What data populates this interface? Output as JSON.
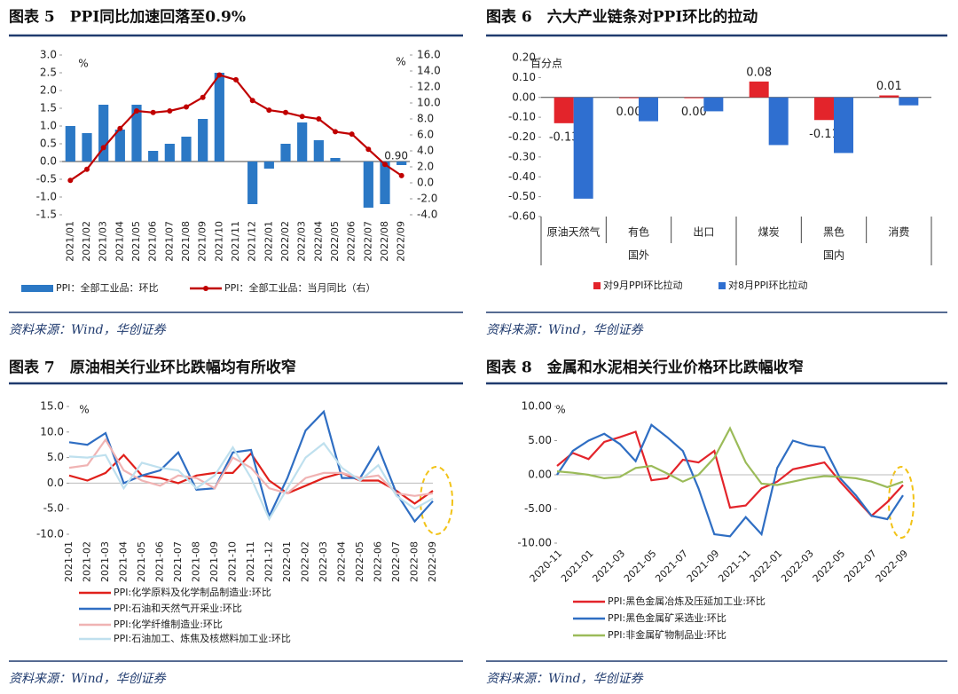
{
  "chart_data": [
    {
      "type": "combo",
      "title": "图表 5　PPI同比加速回落至0.9%",
      "source": "资料来源：Wind，华创证券",
      "ylabel": "%",
      "y2label": "%",
      "categories": [
        "2021/01",
        "2021/02",
        "2021/03",
        "2021/04",
        "2021/05",
        "2021/06",
        "2021/07",
        "2021/08",
        "2021/09",
        "2021/10",
        "2021/11",
        "2021/12",
        "2022/01",
        "2022/02",
        "2022/03",
        "2022/04",
        "2022/05",
        "2022/06",
        "2022/07",
        "2022/08",
        "2022/09"
      ],
      "series": [
        {
          "name": "PPI：全部工业品：环比",
          "color": "#2b78c5",
          "values": [
            1.0,
            0.8,
            1.6,
            0.9,
            1.6,
            0.3,
            0.5,
            0.7,
            1.2,
            2.5,
            0.0,
            -1.2,
            -0.2,
            0.5,
            1.1,
            0.6,
            0.1,
            0.0,
            -1.3,
            -1.2,
            -0.1
          ]
        },
        {
          "name": "PPI：全部工业品：当月同比（右）",
          "color": "#c00000",
          "axis": "y2",
          "values": [
            0.3,
            1.7,
            4.4,
            6.8,
            9.0,
            8.8,
            9.0,
            9.5,
            10.7,
            13.5,
            12.9,
            10.3,
            9.1,
            8.8,
            8.3,
            8.0,
            6.4,
            6.1,
            4.2,
            2.3,
            0.9
          ],
          "value_labels": [
            null,
            null,
            null,
            null,
            null,
            null,
            null,
            null,
            null,
            null,
            null,
            null,
            null,
            null,
            null,
            null,
            null,
            null,
            null,
            null,
            "0.90"
          ]
        }
      ],
      "ylim": [
        -1.5,
        3.0
      ],
      "yticks": [
        {
          "value": 3.0,
          "label": "3.0"
        },
        {
          "value": 2.5,
          "label": "2.5"
        },
        {
          "value": 2.0,
          "label": "2.0"
        },
        {
          "value": 1.5,
          "label": "1.5"
        },
        {
          "value": 1.0,
          "label": "1.0"
        },
        0.5,
        {
          "value": 0,
          "label": "0.0"
        },
        -0.5,
        {
          "value": -1.0,
          "label": "-1.0"
        },
        -1.5
      ],
      "y2lim": [
        -4.0,
        16.0
      ],
      "y2ticks": [
        {
          "value": 16,
          "label": "16.0"
        },
        {
          "value": 14,
          "label": "14.0"
        },
        {
          "value": 12,
          "label": "12.0"
        },
        {
          "value": 10,
          "label": "10.0"
        },
        {
          "value": 8,
          "label": "8.0"
        },
        {
          "value": 6,
          "label": "6.0"
        },
        {
          "value": 4,
          "label": "4.0"
        },
        {
          "value": 2,
          "label": "2.0"
        },
        {
          "value": 0,
          "label": "0.0"
        },
        {
          "value": -2,
          "label": "-2.0"
        },
        {
          "value": -4,
          "label": "-4.0"
        }
      ],
      "legend": "bottom"
    },
    {
      "type": "bar",
      "title": "图表 6　六大产业链条对PPI环比的拉动",
      "source": "资料来源：Wind，华创证券",
      "ylabel": "百分点",
      "categories": [
        "原油天然气",
        "有色",
        "出口",
        "煤炭",
        "黑色",
        "消费"
      ],
      "groups": [
        "国外",
        "国内"
      ],
      "series": [
        {
          "name": "对9月PPI环比拉动",
          "color": "#e3242b",
          "values": [
            -0.13,
            -0.004,
            -0.004,
            0.08,
            -0.114,
            0.01
          ],
          "value_labels": [
            "-0.13",
            "0.00",
            "0.00",
            "0.08",
            "-0.11",
            "0.01"
          ]
        },
        {
          "name": "对8月PPI环比拉动",
          "color": "#2f6fd0",
          "values": [
            -0.51,
            -0.12,
            -0.07,
            -0.24,
            -0.28,
            -0.04
          ]
        }
      ],
      "ylim": [
        -0.6,
        0.2
      ],
      "yticks": [
        {
          "value": 0.2,
          "label": "0.20"
        },
        {
          "value": 0.1,
          "label": "0.10"
        },
        {
          "value": 0,
          "label": "0.00"
        },
        {
          "value": -0.1,
          "label": "-0.10"
        },
        {
          "value": -0.2,
          "label": "-0.20"
        },
        {
          "value": -0.3,
          "label": "-0.30"
        },
        {
          "value": -0.4,
          "label": "-0.40"
        },
        {
          "value": -0.5,
          "label": "-0.50"
        },
        {
          "value": -0.6,
          "label": "-0.60"
        }
      ],
      "legend": "bottom"
    },
    {
      "type": "line",
      "title": "图表 7　原油相关行业环比跌幅均有所收窄",
      "source": "资料来源：Wind，华创证券",
      "ylabel": "%",
      "categories": [
        "2021-01",
        "2021-02",
        "2021-03",
        "2021-04",
        "2021-05",
        "2021-06",
        "2021-07",
        "2021-08",
        "2021-09",
        "2021-10",
        "2021-11",
        "2021-12",
        "2022-01",
        "2022-02",
        "2022-03",
        "2022-04",
        "2022-05",
        "2022-06",
        "2022-07",
        "2022-08",
        "2022-09"
      ],
      "series": [
        {
          "name": "PPI:化学原料及化学制品制造业:环比",
          "color": "#e0201b",
          "values": [
            1.5,
            0.5,
            2.0,
            5.5,
            1.5,
            1.0,
            0.0,
            1.5,
            2.0,
            2.0,
            5.8,
            0.5,
            -2.0,
            -0.5,
            1.0,
            2.0,
            0.5,
            0.5,
            -1.5,
            -4.0,
            -1.5
          ]
        },
        {
          "name": "PPI:石油和天然气开采业:环比",
          "color": "#2f6ec3",
          "values": [
            8.0,
            7.5,
            9.8,
            0.0,
            1.5,
            2.5,
            6.0,
            -1.3,
            -1.0,
            6.0,
            6.5,
            -6.5,
            1.0,
            10.3,
            14.0,
            1.0,
            1.0,
            7.0,
            -2.0,
            -7.5,
            -3.5
          ]
        },
        {
          "name": "PPI:化学纤维制造业:环比",
          "color": "#f0b3b3",
          "values": [
            3.0,
            3.5,
            8.5,
            2.5,
            0.5,
            -0.5,
            1.5,
            1.0,
            -1.0,
            5.0,
            3.0,
            -1.0,
            -2.0,
            1.0,
            2.0,
            2.0,
            1.0,
            1.5,
            -2.0,
            -2.5,
            -2.0
          ]
        },
        {
          "name": "PPI:石油加工、炼焦及核燃料加工业:环比",
          "color": "#bfe0ee",
          "values": [
            5.2,
            5.0,
            5.5,
            -1.0,
            4.0,
            3.0,
            2.5,
            -1.0,
            1.5,
            7.0,
            1.0,
            -7.0,
            -1.0,
            5.0,
            7.8,
            3.0,
            0.5,
            3.5,
            -2.5,
            -5.0,
            -3.0
          ]
        }
      ],
      "ylim": [
        -10,
        15
      ],
      "yticks": [
        {
          "value": 15,
          "label": "15.0"
        },
        {
          "value": 10,
          "label": "10.0"
        },
        {
          "value": 5,
          "label": "5.0"
        },
        {
          "value": 0,
          "label": "0.0"
        },
        {
          "value": -5,
          "label": "-5.0"
        },
        {
          "value": -10,
          "label": "-10.0"
        }
      ],
      "legend": "bottom"
    },
    {
      "type": "line",
      "title": "图表 8　金属和水泥相关行业价格环比跌幅收窄",
      "source": "资料来源：Wind，华创证券",
      "ylabel": "%",
      "categories": [
        "2020-11",
        null,
        "2021-01",
        null,
        "2021-03",
        null,
        "2021-05",
        null,
        "2021-07",
        null,
        "2021-09",
        null,
        "2021-11",
        null,
        "2022-01",
        null,
        "2022-03",
        null,
        "2022-05",
        null,
        "2022-07",
        null,
        "2022-09"
      ],
      "series": [
        {
          "name": "PPI:黑色金属冶炼及压延加工业:环比",
          "color": "#e3242b",
          "values": [
            1.3,
            3.2,
            2.3,
            4.8,
            5.5,
            6.3,
            -0.8,
            -0.5,
            2.2,
            1.8,
            3.5,
            -4.8,
            -4.5,
            -2.0,
            -1.0,
            0.8,
            1.3,
            1.8,
            -1.0,
            -3.5,
            -6.0,
            -4.0,
            -1.5
          ]
        },
        {
          "name": "PPI:黑色金属矿采选业:环比",
          "color": "#2f6ec3",
          "values": [
            0.0,
            3.5,
            5.0,
            6.0,
            4.5,
            2.0,
            7.3,
            5.5,
            3.5,
            -2.0,
            -8.7,
            -9.0,
            -6.2,
            -8.7,
            1.0,
            5.0,
            4.3,
            4.0,
            -0.5,
            -3.0,
            -6.0,
            -6.5,
            -3.0
          ]
        },
        {
          "name": "PPI:非金属矿物制品业:环比",
          "color": "#9bbb59",
          "values": [
            0.5,
            0.3,
            0.0,
            -0.5,
            -0.3,
            1.0,
            1.3,
            0.2,
            -1.0,
            0.0,
            2.5,
            6.8,
            1.8,
            -1.3,
            -1.5,
            -1.0,
            -0.5,
            -0.2,
            -0.3,
            -0.5,
            -1.0,
            -1.8,
            -1.0
          ]
        }
      ],
      "ylim": [
        -10,
        10
      ],
      "yticks": [
        {
          "value": 10,
          "label": "10.00"
        },
        {
          "value": 5,
          "label": "5.00"
        },
        {
          "value": 0,
          "label": "0.00"
        },
        {
          "value": -5,
          "label": "-5.00"
        },
        {
          "value": -10,
          "label": "-10.00"
        }
      ],
      "legend": "bottom"
    }
  ]
}
